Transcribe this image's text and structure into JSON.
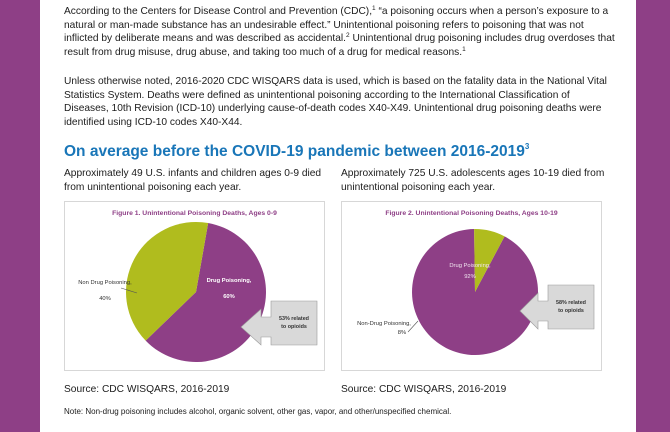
{
  "intro": {
    "p1_a": "According to the Centers for Disease Control and Prevention (CDC),",
    "p1_ref1": "1",
    "p1_b": " “a poisoning occurs when a person’s exposure to a natural or man-made substance has an undesirable effect.” Unintentional poisoning refers to poisoning that was not inflicted by deliberate means and was described as accidental.",
    "p1_ref2": "2",
    "p1_c": " Unintentional drug poisoning includes drug overdoses that result from drug misuse, drug abuse, and taking too much of a drug for medical reasons.",
    "p1_ref3": "1",
    "p2": "Unless otherwise noted, 2016-2020 CDC WISQARS data is used, which is based on the fatality data in the National Vital Statistics System. Deaths were defined as unintentional poisoning according to the International Classification of Diseases, 10th Revision (ICD-10) underlying cause-of-death codes X40-X49. Unintentional drug poisoning deaths were identified using ICD-10 codes X40-X44."
  },
  "section": {
    "heading": "On average before the COVID-19 pandemic between 2016-2019",
    "heading_ref": "3"
  },
  "left": {
    "text": "Approximately 49 U.S. infants and children ages 0-9 died from unintentional poisoning each year.",
    "source": "Source: CDC WISQARS, 2016-2019"
  },
  "right": {
    "text": "Approximately 725 U.S. adolescents ages 10-19 died from unintentional poisoning each year.",
    "source": "Source: CDC WISQARS, 2016-2019"
  },
  "note": "Note: Non-drug poisoning includes alcohol, organic solvent, other gas, vapor, and other/unspecified chemical.",
  "colors": {
    "drug": "#8e3f86",
    "non_drug": "#b0bc1e",
    "band": "#8e3f86",
    "heading": "#1976b8"
  },
  "chart_data": [
    {
      "type": "pie",
      "title": "Figure 1. Unintentional Poisoning Deaths, Ages 0-9",
      "slices": [
        {
          "label": "Drug Poisoning,",
          "value_label": "60%",
          "value": 60
        },
        {
          "label": "Non Drug Poisoning,",
          "value_label": "40%",
          "value": 40
        }
      ],
      "callout": {
        "line1": "53% related",
        "line2": "to opioids"
      }
    },
    {
      "type": "pie",
      "title": "Figure 2. Unintentional Poisoning Deaths, Ages 10-19",
      "slices": [
        {
          "label": "Drug Poisoning,",
          "value_label": "92%",
          "value": 92
        },
        {
          "label": "Non-Drug Poisoning,",
          "value_label": "8%",
          "value": 8
        }
      ],
      "callout": {
        "line1": "58% related",
        "line2": "to opioids"
      }
    }
  ]
}
